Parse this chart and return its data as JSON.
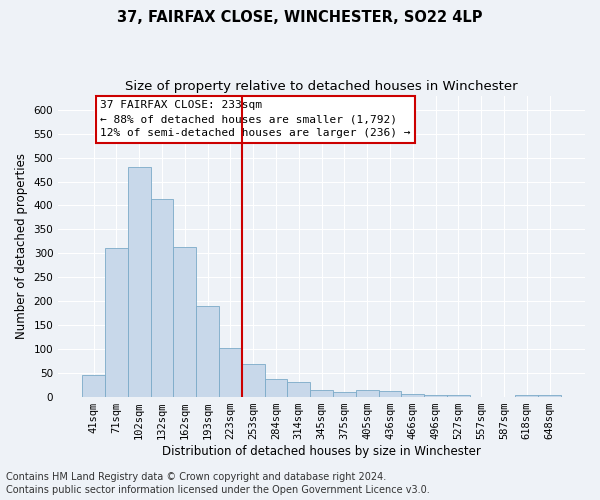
{
  "title": "37, FAIRFAX CLOSE, WINCHESTER, SO22 4LP",
  "subtitle": "Size of property relative to detached houses in Winchester",
  "xlabel": "Distribution of detached houses by size in Winchester",
  "ylabel": "Number of detached properties",
  "categories": [
    "41sqm",
    "71sqm",
    "102sqm",
    "132sqm",
    "162sqm",
    "193sqm",
    "223sqm",
    "253sqm",
    "284sqm",
    "314sqm",
    "345sqm",
    "375sqm",
    "405sqm",
    "436sqm",
    "466sqm",
    "496sqm",
    "527sqm",
    "557sqm",
    "587sqm",
    "618sqm",
    "648sqm"
  ],
  "values": [
    45,
    311,
    480,
    413,
    313,
    190,
    102,
    68,
    37,
    30,
    13,
    10,
    13,
    11,
    6,
    3,
    3,
    0,
    0,
    3,
    3
  ],
  "bar_color": "#c8d8ea",
  "bar_edge_color": "#7baac8",
  "vline_x": 6.5,
  "vline_color": "#cc0000",
  "annotation_text": "37 FAIRFAX CLOSE: 233sqm\n← 88% of detached houses are smaller (1,792)\n12% of semi-detached houses are larger (236) →",
  "annotation_box_color": "white",
  "annotation_box_edge": "#cc0000",
  "ylim": [
    0,
    630
  ],
  "yticks": [
    0,
    50,
    100,
    150,
    200,
    250,
    300,
    350,
    400,
    450,
    500,
    550,
    600
  ],
  "footer1": "Contains HM Land Registry data © Crown copyright and database right 2024.",
  "footer2": "Contains public sector information licensed under the Open Government Licence v3.0.",
  "bg_color": "#eef2f7",
  "plot_bg_color": "#eef2f7",
  "grid_color": "#ffffff",
  "title_fontsize": 10.5,
  "subtitle_fontsize": 9.5,
  "label_fontsize": 8.5,
  "tick_fontsize": 7.5,
  "footer_fontsize": 7,
  "annot_fontsize": 8
}
